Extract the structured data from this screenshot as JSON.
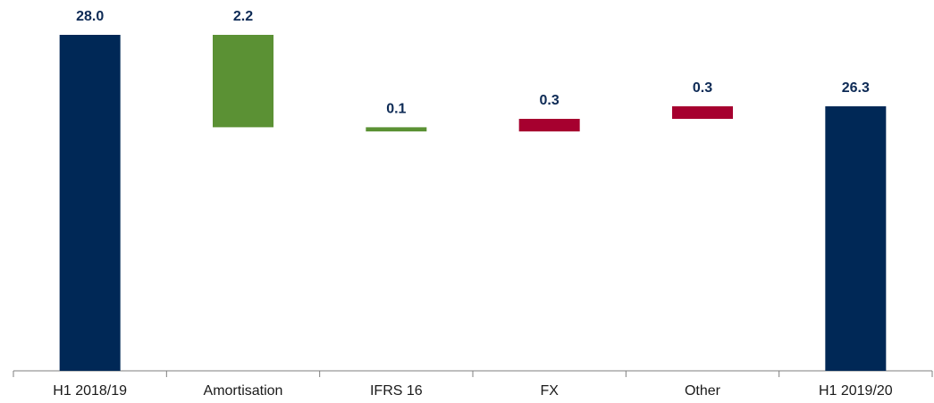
{
  "chart_data": {
    "type": "waterfall",
    "categories": [
      "H1 2018/19",
      "Amortisation",
      "IFRS 16",
      "FX",
      "Other",
      "H1 2019/20"
    ],
    "measures": [
      "total",
      "relative",
      "relative",
      "relative",
      "relative",
      "total"
    ],
    "values": [
      28.0,
      -2.2,
      -0.1,
      0.3,
      0.3,
      26.3
    ],
    "value_labels": [
      "28.0",
      "2.2",
      "0.1",
      "0.3",
      "0.3",
      "26.3"
    ],
    "colors": {
      "total": "#002856",
      "decrease": "#5b9134",
      "increase": "#a6002f"
    },
    "ylim": [
      20,
      29
    ]
  }
}
